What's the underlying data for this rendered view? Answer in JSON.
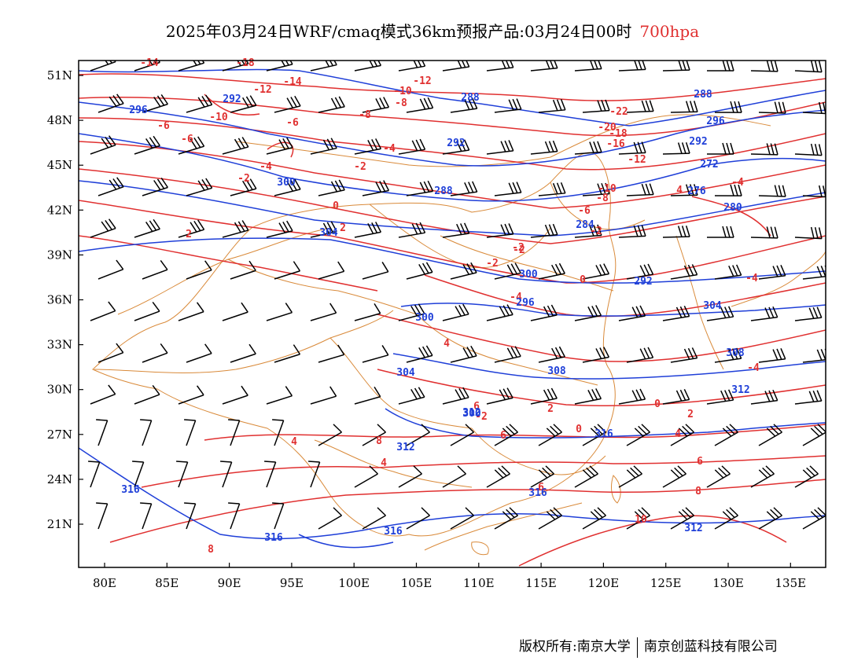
{
  "title": {
    "text": "2025年03月24日WRF/cmaq模式36km预报产品:03月24日00时",
    "level": "700hpa",
    "level_color": "#e03030"
  },
  "map": {
    "lon_labels": [
      "80E",
      "85E",
      "90E",
      "95E",
      "100E",
      "105E",
      "110E",
      "115E",
      "120E",
      "125E",
      "130E",
      "135E"
    ],
    "lat_labels": [
      "51N",
      "48N",
      "45N",
      "42N",
      "39N",
      "36N",
      "33N",
      "30N",
      "27N",
      "24N",
      "21N"
    ],
    "temperature_color": "#e03030",
    "height_color": "#1f3fd8",
    "boundary_color": "#d98a3a",
    "wind_color": "#000000",
    "temperature_labels": [
      "-14",
      "-18",
      "-14",
      "-12",
      "-12",
      "-10",
      "-8",
      "-6",
      "-10",
      "-8",
      "-6",
      "-6",
      "-4",
      "-2",
      "-4",
      "-2",
      "0",
      "0",
      "-2",
      "2",
      "2",
      "4",
      "-2",
      "-4",
      "-2",
      "-22",
      "-20",
      "-18",
      "-16",
      "-12",
      "-10",
      "-8",
      "-6",
      "-4",
      "4",
      "-4",
      "-4",
      "-2",
      "0",
      "0",
      "2",
      "4",
      "4",
      "2",
      "4",
      "6",
      "6",
      "6",
      "8",
      "8",
      "10",
      "8",
      "6",
      "-2"
    ],
    "height_labels": [
      "288",
      "296",
      "292",
      "300",
      "304",
      "292",
      "288",
      "296",
      "292",
      "272",
      "276",
      "280",
      "284",
      "288",
      "292",
      "300",
      "304",
      "296",
      "300",
      "304",
      "308",
      "312",
      "308",
      "312",
      "312",
      "316",
      "316",
      "316",
      "316",
      "316",
      "312",
      "300"
    ]
  },
  "footer": {
    "left": "版权所有:南京大学",
    "right": "南京创蓝科技有限公司"
  }
}
